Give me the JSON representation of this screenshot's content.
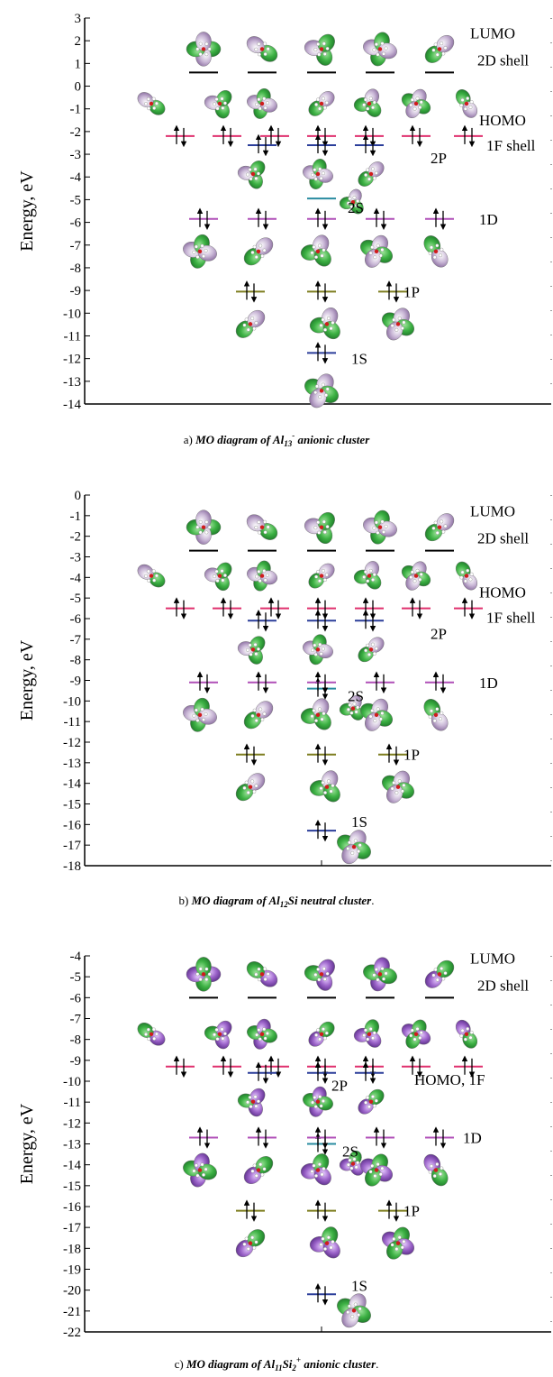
{
  "panels": [
    {
      "id": "a",
      "y_ticks": [
        "3",
        "2",
        "1",
        "0",
        "-1",
        "-2",
        "-3",
        "-4",
        "-5",
        "-6",
        "-7",
        "-8",
        "-9",
        "-10",
        "-11",
        "-12",
        "-13",
        "-14"
      ],
      "ylabel": "Energy, eV",
      "labels": {
        "lumo": "LUMO",
        "d2": "2D shell",
        "homo": "HOMO",
        "f1": "1F shell",
        "p2": "2P",
        "s2": "2S",
        "d1": "1D",
        "p1": "1P",
        "s1": "1S"
      },
      "caption_prefix": "a) ",
      "caption_main": "MO diagram of Al",
      "caption_sub": "13",
      "caption_sup": "-",
      "caption_rest": " anionic cluster",
      "levels": {
        "lumo": 0.6,
        "homo": -2.2,
        "p2": -2.6,
        "s2": -4.95,
        "d1": -5.85,
        "p1": -9.05,
        "s1": -11.75
      }
    },
    {
      "id": "b",
      "y_ticks": [
        "0",
        "-1",
        "-2",
        "-3",
        "-4",
        "-5",
        "-6",
        "-7",
        "-8",
        "-9",
        "-10",
        "-11",
        "-12",
        "-13",
        "-14",
        "-15",
        "-16",
        "-17",
        "-18"
      ],
      "ylabel": "Energy, eV",
      "labels": {
        "lumo": "LUMO",
        "d2": "2D shell",
        "homo": "HOMO",
        "f1": "1F shell",
        "p2": "2P",
        "s2": "2S",
        "d1": "1D",
        "p1": "1P",
        "s1": "1S"
      },
      "caption_prefix": "b) ",
      "caption_main": "MO diagram of Al",
      "caption_sub": "12",
      "caption_sup": "",
      "caption_rest": "Si neutral cluster",
      "caption_end": ".",
      "levels": {
        "lumo": -2.7,
        "homo": -5.5,
        "p2": -6.1,
        "s2": -9.4,
        "d1": -9.1,
        "p1": -12.6,
        "s1": -16.3
      }
    },
    {
      "id": "c",
      "y_ticks": [
        "-4",
        "-5",
        "-6",
        "-7",
        "-8",
        "-9",
        "-10",
        "-11",
        "-12",
        "-13",
        "-14",
        "-15",
        "-16",
        "-17",
        "-18",
        "-19",
        "-20",
        "-21",
        "-22"
      ],
      "ylabel": "Energy, eV",
      "labels": {
        "lumo": "LUMO",
        "d2": "2D shell",
        "homo": "HOMO, 1F",
        "p2": "2P",
        "s2": "2S",
        "d1": "1D",
        "p1": "1P",
        "s1": "1S"
      },
      "caption_prefix": "c) ",
      "caption_main": "MO diagram of Al",
      "caption_sub": "11",
      "caption_mid": "Si",
      "caption_sub2": "2",
      "caption_sup": "+",
      "caption_rest": " anionic cluster",
      "caption_end": ".",
      "levels": {
        "lumo": -6.0,
        "homo": -9.3,
        "p2": -9.6,
        "s2": -13.0,
        "d1": -12.7,
        "p1": -16.2,
        "s1": -20.2
      }
    }
  ],
  "colors": {
    "lumo_level": "#000000",
    "homo_level": "#e0306e",
    "p2_level": "#2b3e9a",
    "s2_level": "#2a8ca0",
    "d1_level": "#b050b8",
    "p1_level": "#7d7d1e",
    "s1_level": "#2b3e9a",
    "orbital_green": "#3cb043",
    "orbital_pink": "#c4a9c8",
    "orbital_purple": "#9a62c8"
  }
}
